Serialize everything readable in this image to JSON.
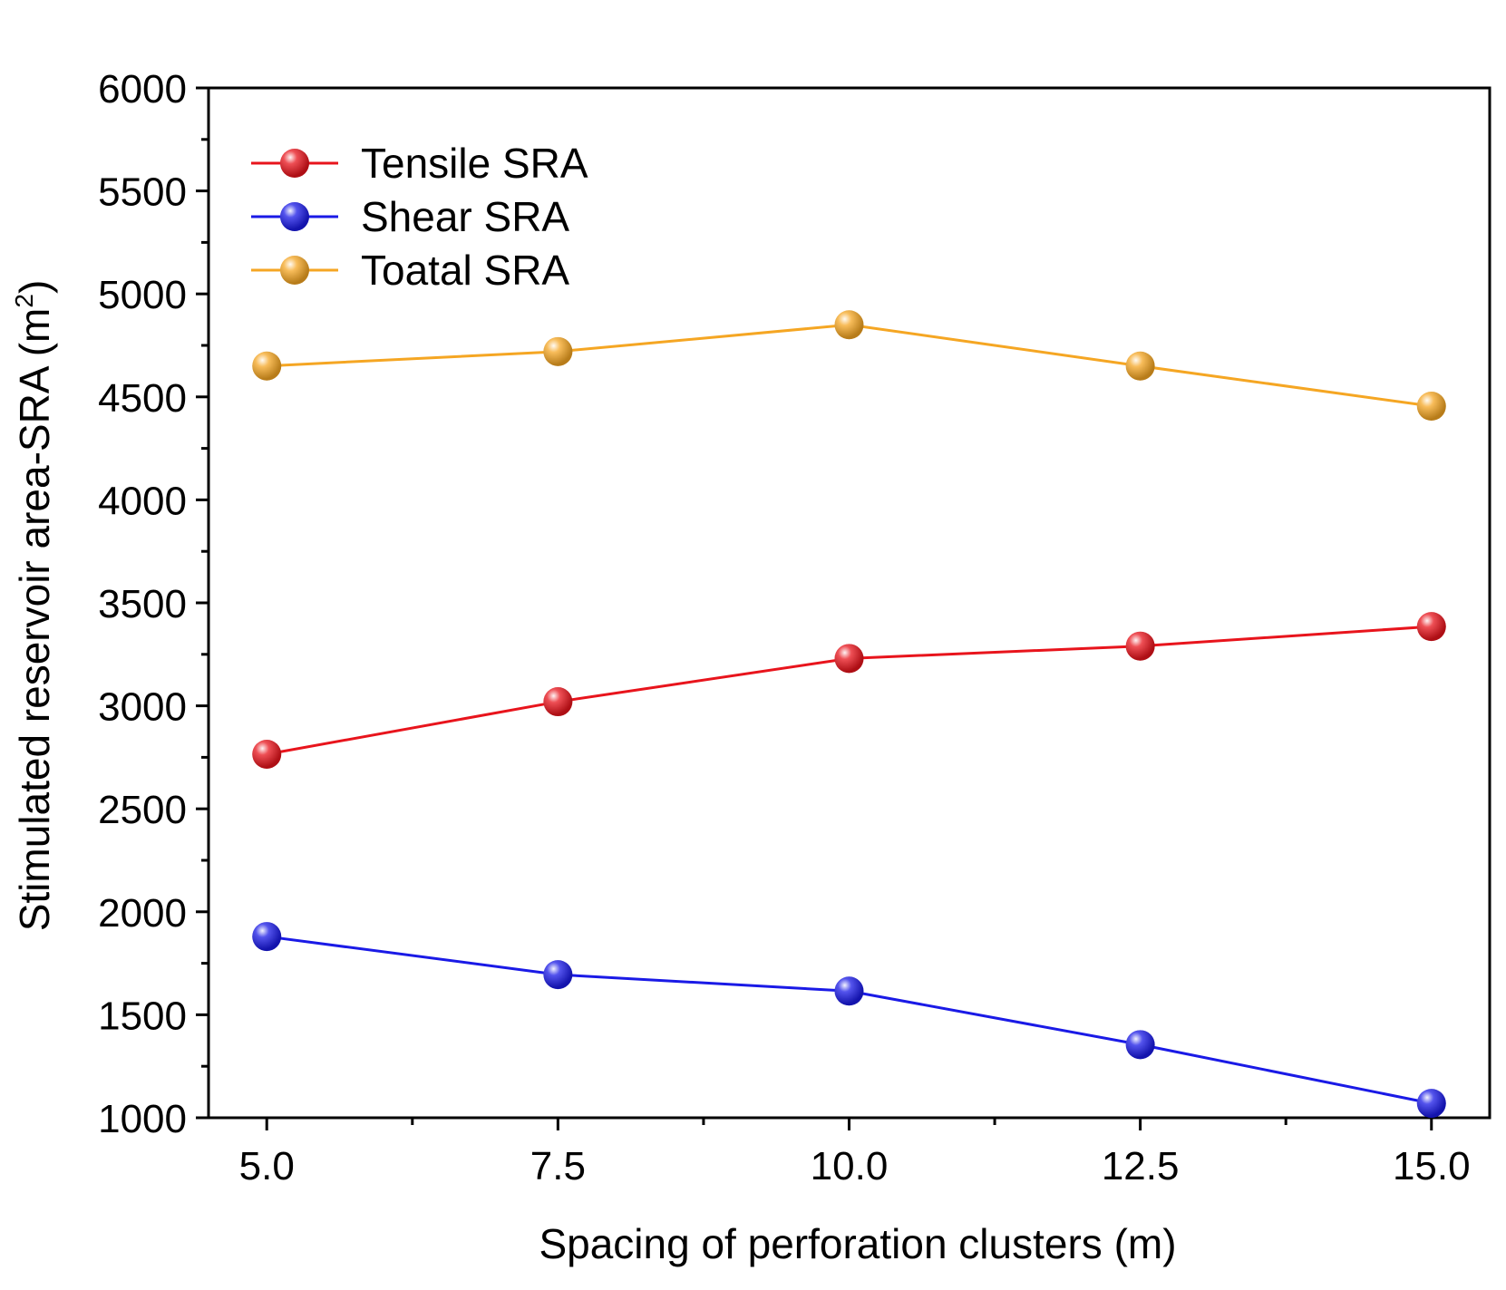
{
  "chart_data": {
    "type": "line",
    "title": "",
    "xlabel": "Spacing of perforation clusters (m)",
    "ylabel": "Stimulated reservoir area-SRA",
    "ylabel_unit_base": "m",
    "ylabel_unit_exp": "2",
    "x": [
      5.0,
      7.5,
      10.0,
      12.5,
      15.0
    ],
    "x_tick_labels": [
      "5.0",
      "7.5",
      "10.0",
      "12.5",
      "15.0"
    ],
    "y_tick_labels": [
      "1000",
      "1500",
      "2000",
      "2500",
      "3000",
      "3500",
      "4000",
      "4500",
      "5000",
      "5500",
      "6000"
    ],
    "xlim": [
      4.5,
      15.5
    ],
    "ylim": [
      1000,
      6000
    ],
    "grid": false,
    "legend_position": "top-left",
    "series": [
      {
        "name": "Tensile SRA",
        "color": "#e8141c",
        "values": [
          2765,
          3020,
          3230,
          3290,
          3385
        ]
      },
      {
        "name": "Shear SRA",
        "color": "#1a1ae6",
        "values": [
          1880,
          1695,
          1615,
          1355,
          1070
        ]
      },
      {
        "name": "Toatal SRA",
        "color": "#f5a623",
        "values": [
          4650,
          4720,
          4850,
          4650,
          4455
        ]
      }
    ]
  }
}
